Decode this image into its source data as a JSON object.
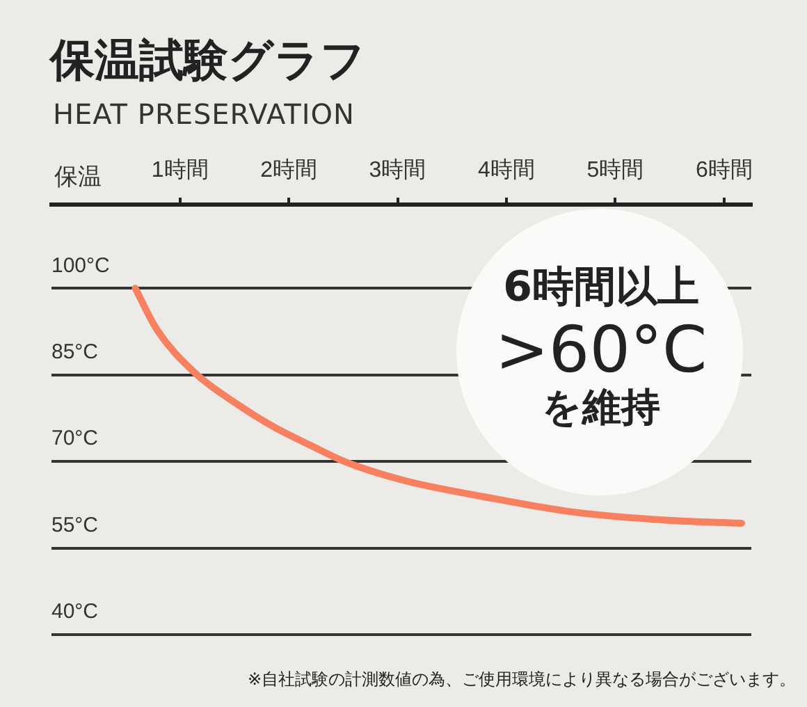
{
  "chart_data": {
    "type": "line",
    "title": "保温試験グラフ",
    "subtitle": "HEAT PRESERVATION",
    "ylabel": "保温",
    "x": [
      0.59,
      0.79,
      1.14,
      1.52,
      1.87,
      2.2,
      2.51,
      3.06,
      3.79,
      4.63,
      5.49,
      6.16
    ],
    "series": [
      {
        "color": "#f6805f",
        "values": [
          100,
          92.8,
          85.3,
          80,
          75.9,
          72.8,
          70,
          66.7,
          63.9,
          61.2,
          59.8,
          59.3
        ]
      }
    ],
    "xlim": [
      -0.18,
      6.25
    ],
    "xticks": [
      {
        "value": 1,
        "label": "1時間"
      },
      {
        "value": 2,
        "label": "2時間"
      },
      {
        "value": 3,
        "label": "3時間"
      },
      {
        "value": 4,
        "label": "4時間"
      },
      {
        "value": 5,
        "label": "5時間"
      },
      {
        "value": 6,
        "label": "6時間"
      }
    ],
    "ylim": [
      40,
      114.5
    ],
    "yticks": [
      {
        "value": 40,
        "label": "40°C"
      },
      {
        "value": 55,
        "label": "55°C"
      },
      {
        "value": 70,
        "label": "70°C"
      },
      {
        "value": 85,
        "label": "85°C"
      },
      {
        "value": 100,
        "label": "100°C"
      }
    ],
    "grid": "y",
    "legend": false,
    "marker": "none",
    "line_style": "solid",
    "annotations": [
      "6時間以上",
      ">60°C",
      "を維持",
      "※自社試験の計測数値の為、ご使用環境により異なる場合がございます。"
    ]
  }
}
